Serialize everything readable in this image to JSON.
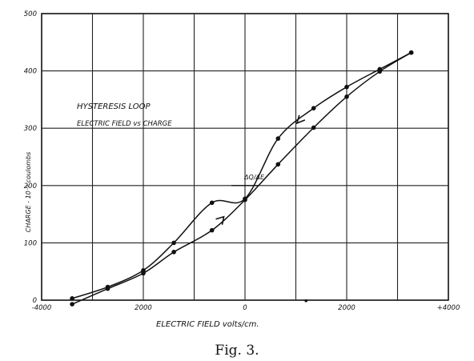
{
  "caption": "Fig. 3.",
  "chart_data": {
    "type": "line",
    "title": "",
    "annotation_lines": [
      "HYSTERESIS LOOP",
      "ELECTRIC FIELD vs CHARGE"
    ],
    "xlabel": "ELECTRIC FIELD   volts/cm.",
    "ylabel": "CHARGE - 10⁻⁹ coulombs",
    "xlim": [
      -4000,
      4000
    ],
    "ylim": [
      0,
      500
    ],
    "x_ticks": [
      {
        "value": -4000,
        "label": "-4000"
      },
      {
        "value": -2000,
        "label": "2000"
      },
      {
        "value": 0,
        "label": "0"
      },
      {
        "value": 2000,
        "label": "2000"
      },
      {
        "value": 4000,
        "label": "+4000"
      }
    ],
    "y_ticks": [
      {
        "value": 0,
        "label": "0"
      },
      {
        "value": 100,
        "label": "100"
      },
      {
        "value": 200,
        "label": "200"
      },
      {
        "value": 300,
        "label": "300"
      },
      {
        "value": 400,
        "label": "400"
      },
      {
        "value": 500,
        "label": "500"
      }
    ],
    "grid": true,
    "point_annotations": [
      {
        "x": 80,
        "y": 205,
        "text": "ΔQ/ΔE"
      }
    ],
    "series": [
      {
        "points": [
          [
            3270,
            432
          ],
          [
            2650,
            403
          ],
          [
            2000,
            372
          ],
          [
            1350,
            335
          ],
          [
            650,
            282
          ],
          [
            0,
            177
          ],
          [
            -650,
            170
          ],
          [
            -1400,
            100
          ],
          [
            -2000,
            52
          ],
          [
            -2700,
            23
          ],
          [
            -3400,
            3
          ]
        ]
      },
      {
        "points": [
          [
            -3400,
            -7
          ],
          [
            -2700,
            20
          ],
          [
            -2000,
            47
          ],
          [
            -1400,
            84
          ],
          [
            -650,
            122
          ],
          [
            0,
            175
          ],
          [
            650,
            237
          ],
          [
            1350,
            301
          ],
          [
            2000,
            355
          ],
          [
            2650,
            399
          ],
          [
            3270,
            432
          ]
        ]
      }
    ],
    "arrows": [
      {
        "x": 1100,
        "y": 313,
        "direction": "down"
      },
      {
        "x": -480,
        "y": 140,
        "direction": "up"
      }
    ],
    "extra_points": [
      [
        1200,
        -1
      ]
    ]
  }
}
